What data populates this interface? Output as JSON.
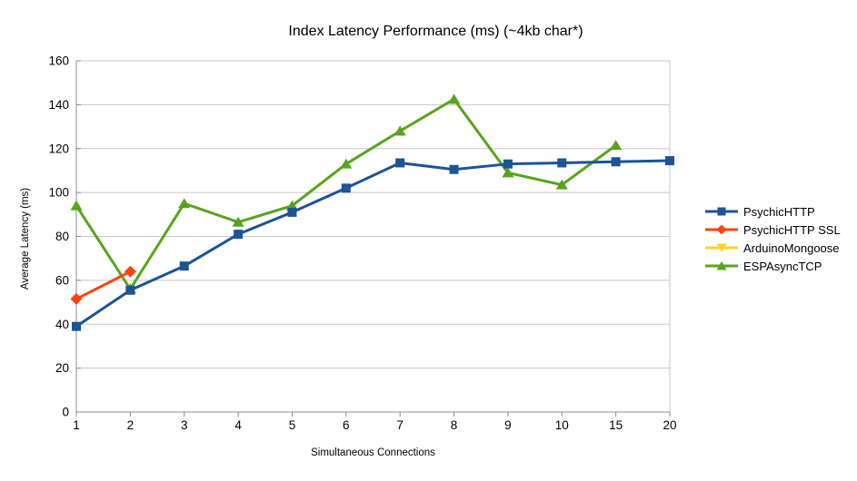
{
  "chart_data": {
    "type": "line",
    "title": "Index Latency Performance (ms) (~4kb char*)",
    "xlabel": "Simultaneous Connections",
    "ylabel": "Average Latency (ms)",
    "categories": [
      "1",
      "2",
      "3",
      "4",
      "5",
      "6",
      "7",
      "8",
      "9",
      "10",
      "15",
      "20"
    ],
    "ylim": [
      0,
      160
    ],
    "yticks": [
      0,
      20,
      40,
      60,
      80,
      100,
      120,
      140,
      160
    ],
    "grid": true,
    "legend_position": "right",
    "series": [
      {
        "name": "PsychicHTTP",
        "color": "#1C5496",
        "marker": "square",
        "values": [
          39,
          55.5,
          66.5,
          81,
          91,
          102,
          113.5,
          110.5,
          113,
          113.5,
          114,
          114.5
        ]
      },
      {
        "name": "PsychicHTTP SSL",
        "color": "#FF420E",
        "marker": "diamond",
        "values": [
          51.5,
          64,
          null,
          null,
          null,
          null,
          null,
          null,
          null,
          null,
          null,
          null
        ]
      },
      {
        "name": "ArduinoMongoose",
        "color": "#FFD320",
        "marker": "triangle-down",
        "values": [
          null,
          null,
          null,
          null,
          null,
          null,
          null,
          null,
          null,
          null,
          null,
          null
        ]
      },
      {
        "name": "ESPAsyncTCP",
        "color": "#58A41C",
        "marker": "triangle-up",
        "values": [
          94,
          56,
          95,
          86.5,
          94,
          113,
          128,
          142.5,
          109,
          103.5,
          121.5,
          null
        ]
      }
    ],
    "style_colors": {
      "gridline": "#C8C8C8",
      "axis": "#8C8C8C",
      "text": "#000000",
      "background": "#FFFFFF"
    }
  }
}
